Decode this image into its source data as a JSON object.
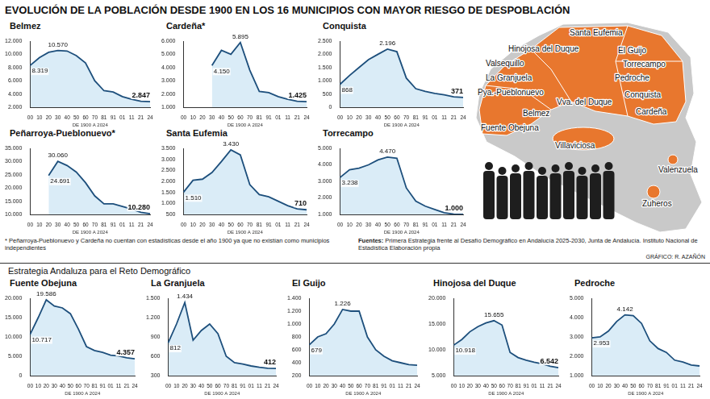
{
  "title": "EVOLUCIÓN DE LA POBLACIÓN DESDE 1900 EN LOS 16 MUNICIPIOS CON MAYOR RIESGO DE DESPOBLACIÓN",
  "section_title": "Estrategia Andaluza para el Reto Demográfico",
  "notes": {
    "footnote": "* Peñarroya-Pueblonuevo y Cardeña no cuentan con estadísticas desde el año 1900 ya que no existían como municipios independientes",
    "sources_label": "Fuentes:",
    "sources": "Primera Estrategia frente al Desafío Demográfico en Andalucía 2025-2030, Junta de Andalucía. Instituto Nacional de Estadística",
    "sources_extra": "Elaboración propia",
    "credit": "GRÁFICO: R. AZAÑÓN"
  },
  "map": {
    "labels": [
      "Santa Eufemia",
      "Hinojosa del Duque",
      "El Guijo",
      "Valsequillo",
      "Torrecampo",
      "Pedroche",
      "La Granjuela",
      "Vva. del Duque",
      "Pya.-Pueblonuevo",
      "Conquista",
      "Belmez",
      "Fuente Obejuna",
      "Cardeña",
      "Villaviciosa",
      "Valenzuela",
      "Zuheros"
    ]
  },
  "chart_data": [
    {
      "type": "line",
      "title": "Belmez",
      "xlabel": "DE 1900 A 2024",
      "color": "#1d4f7c",
      "grid": false,
      "data_labels": true,
      "categories": [
        "00",
        "10",
        "20",
        "30",
        "40",
        "50",
        "60",
        "70",
        "81",
        "91",
        "01",
        "11",
        "21",
        "24"
      ],
      "values": [
        8319,
        9500,
        10300,
        10570,
        10500,
        9800,
        8700,
        6000,
        4500,
        4300,
        3600,
        3200,
        2900,
        2847
      ],
      "value_labels": [
        "8.319",
        null,
        null,
        "10.570",
        null,
        null,
        null,
        null,
        null,
        null,
        null,
        null,
        null,
        "2.847"
      ],
      "ylim": [
        2000,
        12000
      ],
      "yticks": [
        {
          "value": 2000,
          "label": "2.000"
        },
        {
          "value": 4000,
          "label": "4.000"
        },
        {
          "value": 6000,
          "label": "6.000"
        },
        {
          "value": 8000,
          "label": "8.000"
        },
        {
          "value": 10000,
          "label": "10.000"
        },
        {
          "value": 12000,
          "label": "12.000"
        }
      ]
    },
    {
      "type": "line",
      "title": "Cardeña*",
      "xlabel": "DE 1900 A 2024",
      "color": "#1d4f7c",
      "grid": false,
      "data_labels": true,
      "categories": [
        "00",
        "10",
        "20",
        "30",
        "40",
        "50",
        "60",
        "70",
        "81",
        "91",
        "01",
        "11",
        "21",
        "24"
      ],
      "values": [
        null,
        null,
        null,
        4150,
        5300,
        5000,
        5895,
        3800,
        2200,
        2100,
        1800,
        1600,
        1450,
        1425
      ],
      "value_labels": [
        null,
        null,
        null,
        "4.150",
        null,
        null,
        "5.895",
        null,
        null,
        null,
        null,
        null,
        null,
        "1.425"
      ],
      "ylim": [
        1000,
        6000
      ],
      "yticks": [
        {
          "value": 1000,
          "label": "1.000"
        },
        {
          "value": 2000,
          "label": "2.000"
        },
        {
          "value": 3000,
          "label": "3.000"
        },
        {
          "value": 4000,
          "label": "4.000"
        },
        {
          "value": 5000,
          "label": "5.000"
        },
        {
          "value": 6000,
          "label": "6.000"
        }
      ]
    },
    {
      "type": "line",
      "title": "Conquista",
      "xlabel": "DE 1900 A 2024",
      "color": "#1d4f7c",
      "grid": false,
      "data_labels": true,
      "categories": [
        "00",
        "10",
        "20",
        "30",
        "40",
        "50",
        "60",
        "70",
        "81",
        "91",
        "01",
        "11",
        "21",
        "24"
      ],
      "values": [
        868,
        1200,
        1500,
        1800,
        2000,
        2196,
        2100,
        1100,
        700,
        600,
        520,
        470,
        390,
        371
      ],
      "value_labels": [
        "868",
        null,
        null,
        null,
        null,
        "2.196",
        null,
        null,
        null,
        null,
        null,
        null,
        null,
        "371"
      ],
      "ylim": [
        0,
        2500
      ],
      "yticks": [
        0,
        500,
        {
          "value": 1000,
          "label": "1.000"
        },
        {
          "value": 1500,
          "label": "1.500"
        },
        {
          "value": 2000,
          "label": "2.000"
        },
        {
          "value": 2500,
          "label": "2.500"
        }
      ]
    },
    {
      "type": "line",
      "title": "Peñarroya-Pueblonuevo*",
      "xlabel": "DE 1900 A 2024",
      "color": "#1d4f7c",
      "grid": false,
      "data_labels": true,
      "categories": [
        "00",
        "10",
        "20",
        "30",
        "40",
        "50",
        "60",
        "70",
        "81",
        "91",
        "01",
        "11",
        "21",
        "24"
      ],
      "values": [
        null,
        null,
        24691,
        30060,
        28500,
        26000,
        22000,
        17000,
        14000,
        14000,
        13000,
        12000,
        10800,
        10280
      ],
      "value_labels": [
        null,
        null,
        "24.691",
        "30.060",
        null,
        null,
        null,
        null,
        null,
        null,
        null,
        null,
        null,
        "10.280"
      ],
      "ylim": [
        10000,
        35000
      ],
      "yticks": [
        {
          "value": 10000,
          "label": "10.000"
        },
        {
          "value": 15000,
          "label": "15.000"
        },
        {
          "value": 20000,
          "label": "20.000"
        },
        {
          "value": 25000,
          "label": "25.000"
        },
        {
          "value": 30000,
          "label": "30.000"
        },
        {
          "value": 35000,
          "label": "35.000"
        }
      ]
    },
    {
      "type": "line",
      "title": "Santa Eufemia",
      "xlabel": "DE 1900 A 2024",
      "color": "#1d4f7c",
      "grid": false,
      "data_labels": true,
      "categories": [
        "00",
        "10",
        "20",
        "30",
        "40",
        "50",
        "60",
        "70",
        "81",
        "91",
        "01",
        "11",
        "21",
        "24"
      ],
      "values": [
        1510,
        2050,
        2100,
        2400,
        2900,
        3430,
        3200,
        1850,
        1400,
        1300,
        1100,
        900,
        750,
        710
      ],
      "value_labels": [
        "1.510",
        null,
        null,
        null,
        null,
        "3.430",
        null,
        null,
        null,
        null,
        null,
        null,
        null,
        "710"
      ],
      "ylim": [
        500,
        3500
      ],
      "yticks": [
        500,
        {
          "value": 1000,
          "label": "1.000"
        },
        {
          "value": 1500,
          "label": "1.500"
        },
        {
          "value": 2000,
          "label": "2.000"
        },
        {
          "value": 2500,
          "label": "2.500"
        },
        {
          "value": 3000,
          "label": "3.000"
        },
        {
          "value": 3500,
          "label": "3.500"
        }
      ]
    },
    {
      "type": "line",
      "title": "Torrecampo",
      "xlabel": "DE 1900 A 2024",
      "color": "#1d4f7c",
      "grid": false,
      "data_labels": true,
      "categories": [
        "00",
        "10",
        "20",
        "30",
        "40",
        "50",
        "60",
        "70",
        "81",
        "91",
        "01",
        "11",
        "21",
        "24"
      ],
      "values": [
        3238,
        3700,
        3800,
        4000,
        4300,
        4470,
        4400,
        2600,
        1800,
        1500,
        1300,
        1100,
        1020,
        1000
      ],
      "value_labels": [
        "3.238",
        null,
        null,
        null,
        null,
        "4.470",
        null,
        null,
        null,
        null,
        null,
        null,
        null,
        "1.000"
      ],
      "ylim": [
        1000,
        5000
      ],
      "yticks": [
        {
          "value": 1000,
          "label": "1.000"
        },
        {
          "value": 2000,
          "label": "2.000"
        },
        {
          "value": 3000,
          "label": "3.000"
        },
        {
          "value": 4000,
          "label": "4.000"
        },
        {
          "value": 5000,
          "label": "5.000"
        }
      ]
    },
    {
      "type": "line",
      "title": "Fuente Obejuna",
      "xlabel": "DE 1900 A 2024",
      "color": "#1d4f7c",
      "grid": false,
      "data_labels": true,
      "categories": [
        "00",
        "10",
        "20",
        "30",
        "40",
        "50",
        "60",
        "70",
        "81",
        "91",
        "01",
        "11",
        "21",
        "24"
      ],
      "values": [
        10717,
        15000,
        19586,
        18000,
        17500,
        16000,
        12000,
        7500,
        6500,
        6000,
        5300,
        5100,
        4600,
        4357
      ],
      "value_labels": [
        "10.717",
        null,
        "19.586",
        null,
        null,
        null,
        null,
        null,
        null,
        null,
        null,
        null,
        null,
        "4.357"
      ],
      "ylim": [
        0,
        20000
      ],
      "yticks": [
        0,
        {
          "value": 5000,
          "label": "5.000"
        },
        {
          "value": 10000,
          "label": "10.000"
        },
        {
          "value": 15000,
          "label": "15.000"
        },
        {
          "value": 20000,
          "label": "20.000"
        }
      ]
    },
    {
      "type": "line",
      "title": "La Granjuela",
      "xlabel": "DE 1900 A 2024",
      "color": "#1d4f7c",
      "grid": false,
      "data_labels": true,
      "categories": [
        "00",
        "10",
        "20",
        "30",
        "40",
        "50",
        "60",
        "70",
        "81",
        "91",
        "01",
        "11",
        "21",
        "24"
      ],
      "values": [
        812,
        1100,
        1434,
        850,
        1000,
        1100,
        950,
        600,
        500,
        480,
        450,
        430,
        415,
        412
      ],
      "value_labels": [
        "812",
        null,
        "1.434",
        null,
        null,
        null,
        null,
        null,
        null,
        null,
        null,
        null,
        null,
        "412"
      ],
      "ylim": [
        300,
        1500
      ],
      "yticks": [
        300,
        600,
        900,
        {
          "value": 1200,
          "label": "1.200"
        },
        {
          "value": 1500,
          "label": "1.500"
        }
      ]
    },
    {
      "type": "line",
      "title": "El Guijo",
      "xlabel": "DE 1900 A 2024",
      "color": "#1d4f7c",
      "grid": false,
      "data_labels": true,
      "categories": [
        "00",
        "10",
        "20",
        "30",
        "40",
        "50",
        "60",
        "70",
        "81",
        "91",
        "01",
        "11",
        "21",
        "24"
      ],
      "values": [
        679,
        800,
        850,
        1000,
        1226,
        1200,
        1200,
        800,
        600,
        500,
        430,
        400,
        370,
        360
      ],
      "value_labels": [
        "679",
        null,
        null,
        null,
        "1.226",
        null,
        null,
        null,
        null,
        null,
        null,
        null,
        null,
        null
      ],
      "ylim": [
        200,
        1400
      ],
      "yticks": [
        200,
        400,
        600,
        800,
        {
          "value": 1000,
          "label": "1.000"
        },
        {
          "value": 1200,
          "label": "1.200"
        },
        {
          "value": 1400,
          "label": "1.400"
        }
      ]
    },
    {
      "type": "line",
      "title": "Hinojosa del Duque",
      "xlabel": "DE 1900 A 2024",
      "color": "#1d4f7c",
      "grid": false,
      "data_labels": true,
      "categories": [
        "00",
        "10",
        "20",
        "30",
        "40",
        "50",
        "60",
        "70",
        "81",
        "91",
        "01",
        "11",
        "21",
        "24"
      ],
      "values": [
        10918,
        12000,
        13500,
        14500,
        15200,
        15655,
        14800,
        9500,
        8500,
        8000,
        7600,
        7300,
        6800,
        6542
      ],
      "value_labels": [
        "10.918",
        null,
        null,
        null,
        null,
        "15.655",
        null,
        null,
        null,
        null,
        null,
        null,
        null,
        "6.542"
      ],
      "ylim": [
        5000,
        20000
      ],
      "yticks": [
        {
          "value": 5000,
          "label": "5.000"
        },
        {
          "value": 10000,
          "label": "10.000"
        },
        {
          "value": 15000,
          "label": "15.000"
        },
        {
          "value": 20000,
          "label": "20.000"
        }
      ]
    },
    {
      "type": "line",
      "title": "Pedroche",
      "xlabel": "DE 1900 A 2024",
      "color": "#1d4f7c",
      "grid": false,
      "data_labels": true,
      "categories": [
        "00",
        "10",
        "20",
        "30",
        "40",
        "50",
        "60",
        "70",
        "81",
        "91",
        "01",
        "11",
        "21",
        "24"
      ],
      "values": [
        2953,
        3000,
        3300,
        3800,
        4142,
        4100,
        3700,
        2800,
        2400,
        2200,
        1800,
        1700,
        1550,
        1500
      ],
      "value_labels": [
        "2.953",
        null,
        null,
        null,
        "4.142",
        null,
        null,
        null,
        null,
        null,
        null,
        null,
        null,
        null
      ],
      "ylim": [
        1000,
        5000
      ],
      "yticks": [
        {
          "value": 1000,
          "label": "1.000"
        },
        {
          "value": 2000,
          "label": "2.000"
        },
        {
          "value": 3000,
          "label": "3.000"
        },
        {
          "value": 4000,
          "label": "4.000"
        },
        {
          "value": 5000,
          "label": "5.000"
        }
      ]
    }
  ]
}
